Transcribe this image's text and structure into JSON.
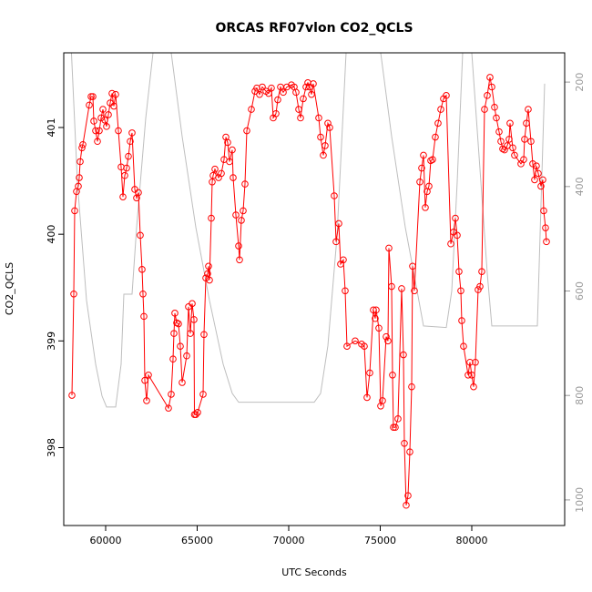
{
  "chart_data": {
    "type": "line",
    "title": "ORCAS RF07vlon CO2_QCLS",
    "xlabel": "UTC Seconds",
    "ylabel": "CO2_QCLS",
    "xlim": [
      57711,
      85075
    ],
    "xticks": [
      60000,
      65000,
      70000,
      75000,
      80000
    ],
    "ylim": [
      397.27,
      401.7
    ],
    "yticks": [
      398,
      399,
      400,
      401
    ],
    "y2lim": [
      1049,
      144
    ],
    "y2ticks": [
      200,
      400,
      600,
      800,
      1000
    ],
    "series": [
      {
        "color": "#ff0000",
        "marker": "circle",
        "x": [
          58159,
          58258,
          58308,
          58408,
          58507,
          58557,
          58607,
          58706,
          58756,
          59104,
          59204,
          59303,
          59353,
          59452,
          59552,
          59651,
          59751,
          59850,
          59950,
          60049,
          60149,
          60248,
          60348,
          60447,
          60547,
          60696,
          60845,
          60945,
          61044,
          61144,
          61243,
          61343,
          61442,
          61591,
          61691,
          61790,
          61890,
          61989,
          62039,
          62089,
          62139,
          62238,
          62338,
          63432,
          63581,
          63681,
          63731,
          63780,
          63880,
          63979,
          64079,
          64178,
          64427,
          64527,
          64626,
          64726,
          64825,
          64850,
          64925,
          65024,
          65323,
          65372,
          65472,
          65571,
          65621,
          65671,
          65771,
          65820,
          65870,
          65970,
          66169,
          66318,
          66467,
          66567,
          66666,
          66766,
          66915,
          66965,
          67114,
          67263,
          67313,
          67412,
          67512,
          67611,
          67711,
          67960,
          68159,
          68258,
          68407,
          68557,
          68756,
          68905,
          69054,
          69154,
          69303,
          69402,
          69552,
          69701,
          69900,
          70149,
          70298,
          70397,
          70547,
          70646,
          70795,
          70945,
          71044,
          71144,
          71243,
          71343,
          71641,
          71741,
          71890,
          71989,
          72139,
          72238,
          72487,
          72587,
          72736,
          72835,
          72984,
          73084,
          73183,
          73631,
          73979,
          74129,
          74278,
          74427,
          74626,
          74726,
          74775,
          74925,
          75024,
          75124,
          75323,
          75422,
          75472,
          75621,
          75671,
          75721,
          75820,
          75969,
          76168,
          76268,
          76318,
          76417,
          76517,
          76616,
          76716,
          76766,
          76865,
          77164,
          77263,
          77363,
          77462,
          77562,
          77661,
          77761,
          77860,
          78009,
          78158,
          78308,
          78457,
          78606,
          78855,
          79004,
          79104,
          79203,
          79303,
          79402,
          79452,
          79551,
          79800,
          79900,
          79999,
          80099,
          80198,
          80347,
          80447,
          80546,
          80696,
          80845,
          80994,
          81094,
          81243,
          81342,
          81492,
          81591,
          81691,
          81790,
          81939,
          82039,
          82089,
          82238,
          82337,
          82686,
          82835,
          82885,
          82984,
          83084,
          83233,
          83332,
          83432,
          83531,
          83631,
          83780,
          83880,
          83929,
          84029,
          84079
        ],
        "values": [
          398.49,
          399.44,
          400.22,
          400.4,
          400.45,
          400.53,
          400.68,
          400.81,
          400.84,
          401.21,
          401.29,
          401.29,
          401.06,
          400.97,
          400.87,
          400.97,
          401.09,
          401.17,
          401.07,
          401.01,
          401.12,
          401.23,
          401.32,
          401.2,
          401.31,
          400.97,
          400.63,
          400.35,
          400.55,
          400.62,
          400.73,
          400.87,
          400.95,
          400.42,
          400.34,
          400.39,
          399.99,
          399.67,
          399.44,
          399.23,
          398.63,
          398.44,
          398.68,
          398.37,
          398.5,
          398.83,
          399.07,
          399.26,
          399.17,
          399.16,
          398.95,
          398.61,
          398.86,
          399.32,
          399.07,
          399.35,
          399.2,
          398.31,
          398.31,
          398.33,
          398.5,
          399.06,
          399.59,
          399.63,
          399.7,
          399.57,
          400.15,
          400.49,
          400.55,
          400.61,
          400.53,
          400.57,
          400.7,
          400.91,
          400.86,
          400.68,
          400.79,
          400.53,
          400.18,
          399.89,
          399.76,
          400.13,
          400.22,
          400.47,
          400.97,
          401.17,
          401.34,
          401.37,
          401.31,
          401.38,
          401.34,
          401.32,
          401.37,
          401.09,
          401.13,
          401.26,
          401.38,
          401.33,
          401.38,
          401.4,
          401.38,
          401.33,
          401.17,
          401.09,
          401.27,
          401.38,
          401.42,
          401.38,
          401.31,
          401.41,
          401.09,
          400.91,
          400.74,
          400.83,
          401.04,
          401.0,
          400.36,
          399.93,
          400.1,
          399.72,
          399.76,
          399.47,
          398.95,
          399.0,
          398.97,
          398.95,
          398.47,
          398.7,
          399.29,
          399.21,
          399.29,
          399.12,
          398.39,
          398.44,
          399.04,
          399.0,
          399.87,
          399.51,
          398.68,
          398.19,
          398.19,
          398.27,
          399.49,
          398.87,
          398.04,
          397.46,
          397.55,
          397.96,
          398.57,
          399.7,
          399.47,
          400.49,
          400.62,
          400.74,
          400.25,
          400.4,
          400.45,
          400.69,
          400.7,
          400.91,
          401.04,
          401.17,
          401.27,
          401.3,
          399.91,
          400.02,
          400.15,
          399.99,
          399.65,
          399.47,
          399.19,
          398.95,
          398.68,
          398.8,
          398.68,
          398.57,
          398.8,
          399.48,
          399.51,
          399.65,
          401.17,
          401.3,
          401.47,
          401.38,
          401.19,
          401.09,
          400.96,
          400.87,
          400.8,
          400.79,
          400.83,
          400.89,
          401.04,
          400.81,
          400.74,
          400.66,
          400.7,
          400.89,
          401.04,
          401.17,
          400.87,
          400.66,
          400.51,
          400.64,
          400.57,
          400.45,
          400.51,
          400.22,
          400.06,
          399.93
        ]
      },
      {
        "color": "#bebebe",
        "axis": "y2",
        "x": [
          58100,
          58457,
          58955,
          59452,
          59800,
          60049,
          60547,
          60845,
          60994,
          61442,
          61691,
          62189,
          62587,
          62700,
          63500,
          63582,
          64179,
          64925,
          65671,
          66418,
          66915,
          67264,
          71393,
          71741,
          72139,
          72637,
          73134,
          73250,
          74900,
          75025,
          75622,
          76368,
          77015,
          77363,
          78607,
          78906,
          79204,
          79502,
          79600,
          79900,
          80000,
          80497,
          80846,
          81095,
          83582,
          83980
        ],
        "values": [
          120,
          391,
          618,
          740,
          801,
          822,
          822,
          740,
          606,
          606,
          478,
          269,
          144,
          100,
          100,
          144,
          304,
          478,
          618,
          740,
          796,
          813,
          813,
          796,
          705,
          496,
          144,
          100,
          100,
          144,
          304,
          478,
          600,
          667,
          670,
          600,
          391,
          144,
          100,
          100,
          144,
          391,
          566,
          667,
          667,
          203
        ]
      }
    ]
  }
}
